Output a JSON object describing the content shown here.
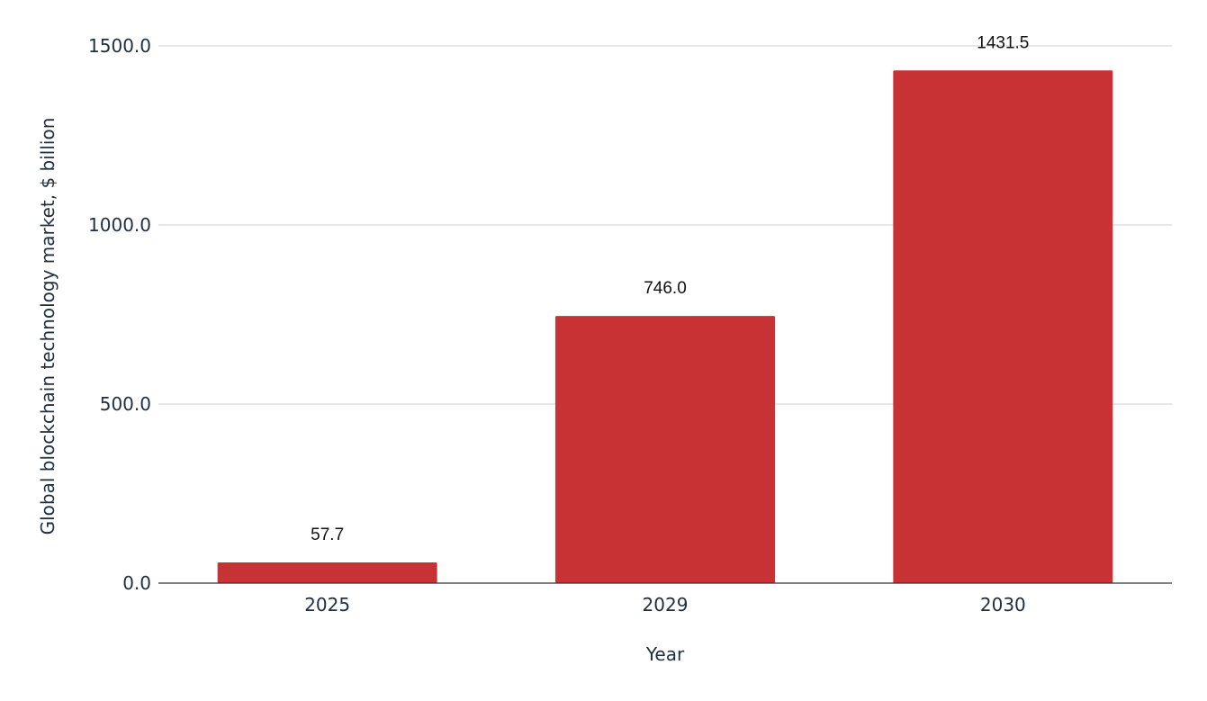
{
  "chart_data": {
    "type": "bar",
    "title": "",
    "categories": [
      "2025",
      "2029",
      "2030"
    ],
    "values": [
      57.7,
      746.0,
      1431.5
    ],
    "data_labels": [
      "57.7",
      "746.0",
      "1431.5"
    ],
    "xlabel": "Year",
    "ylabel": "Global blockchain technology market, $ billion",
    "ylim": [
      0,
      1500
    ],
    "yticks": [
      0,
      500,
      1000,
      1500
    ],
    "ytick_labels": [
      "0.0",
      "500.0",
      "1000.0",
      "1500.0"
    ],
    "grid": true,
    "legend": "none",
    "bar_color": "#c93234"
  }
}
